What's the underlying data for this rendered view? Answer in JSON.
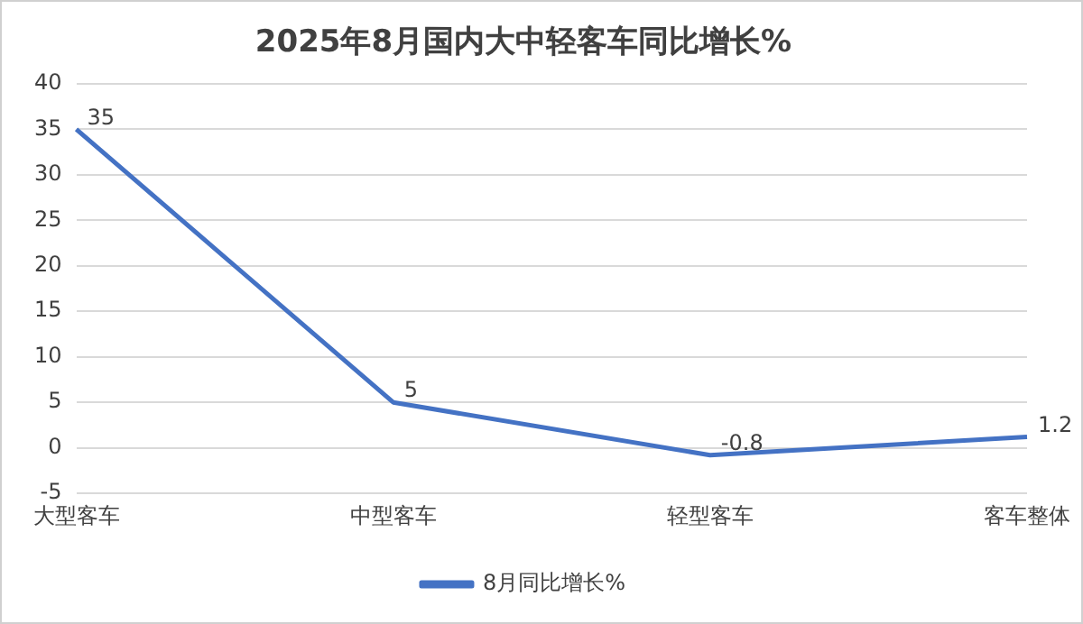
{
  "chart_data": {
    "type": "line",
    "title": "2025年8月国内大中轻客车同比增长%",
    "categories": [
      "大型客车",
      "中型客车",
      "轻型客车",
      "客车整体"
    ],
    "series": [
      {
        "name": "8月同比增长%",
        "color": "#4472c4",
        "values": [
          35,
          5,
          -0.8,
          1.2
        ]
      }
    ],
    "ylim": [
      -5,
      40
    ],
    "yticks": [
      -5,
      0,
      5,
      10,
      15,
      20,
      25,
      30,
      35,
      40
    ],
    "grid": "y",
    "legend": "bottom",
    "data_labels": true,
    "marker": "none",
    "line_style": "solid"
  }
}
